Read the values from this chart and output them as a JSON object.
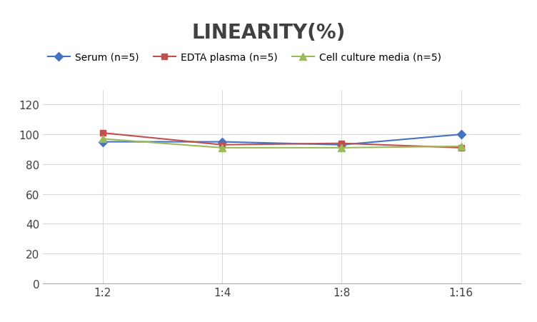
{
  "title": "LINEARITY(%)",
  "x_labels": [
    "1:2",
    "1:4",
    "1:8",
    "1:16"
  ],
  "x_positions": [
    0,
    1,
    2,
    3
  ],
  "series": [
    {
      "label": "Serum (n=5)",
      "values": [
        95,
        95,
        93,
        100
      ],
      "color": "#4472C4",
      "marker": "D",
      "marker_size": 6,
      "linewidth": 1.5
    },
    {
      "label": "EDTA plasma (n=5)",
      "values": [
        101,
        93,
        94,
        91
      ],
      "color": "#C0504D",
      "marker": "s",
      "marker_size": 6,
      "linewidth": 1.5
    },
    {
      "label": "Cell culture media (n=5)",
      "values": [
        97,
        91,
        91,
        92
      ],
      "color": "#9BBB59",
      "marker": "^",
      "marker_size": 7,
      "linewidth": 1.5
    }
  ],
  "ylim": [
    0,
    130
  ],
  "yticks": [
    0,
    20,
    40,
    60,
    80,
    100,
    120
  ],
  "grid_color": "#D9D9D9",
  "background_color": "#FFFFFF",
  "title_fontsize": 20,
  "title_fontweight": "bold",
  "title_color": "#404040",
  "legend_fontsize": 10,
  "tick_fontsize": 11,
  "tick_color": "#404040"
}
